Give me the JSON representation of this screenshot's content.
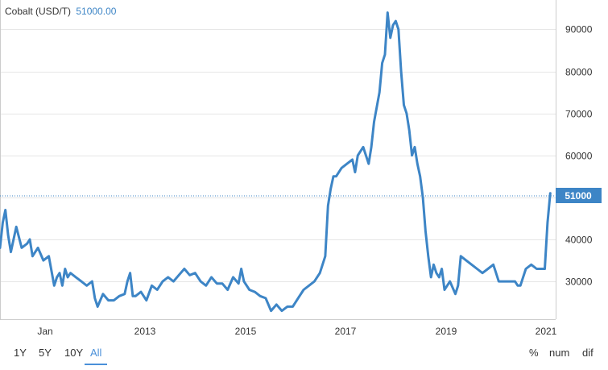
{
  "header": {
    "instrument": "Cobalt (USD/T)",
    "last_price": "51000.00"
  },
  "last_price_tag": "51000",
  "range_buttons": [
    {
      "label": "1Y",
      "active": false
    },
    {
      "label": "5Y",
      "active": false
    },
    {
      "label": "10Y",
      "active": false
    },
    {
      "label": "All",
      "active": true
    }
  ],
  "mode_buttons": [
    {
      "label": "%"
    },
    {
      "label": "num"
    },
    {
      "label": "dif"
    }
  ],
  "colors": {
    "line": "#3d85c6",
    "accent": "#4a90d9",
    "grid": "#e6e6e6",
    "tag": "#3d85c6"
  },
  "chart_data": {
    "type": "line",
    "title": "Cobalt (USD/T)",
    "xlabel": "",
    "ylabel": "",
    "x_ticks": [
      "Jan",
      "2013",
      "2015",
      "2017",
      "2019",
      "2021"
    ],
    "y_ticks": [
      30000,
      40000,
      50000,
      60000,
      70000,
      80000,
      90000
    ],
    "ylim": [
      21000,
      97000
    ],
    "xlim": [
      2011.0,
      2021.25
    ],
    "grid": "horizontal",
    "legend": "none",
    "last_value": 51000,
    "series": [
      {
        "x": [
          2011.0,
          2011.05,
          2011.1,
          2011.15,
          2011.2,
          2011.3,
          2011.4,
          2011.5,
          2011.55,
          2011.6,
          2011.7,
          2011.8,
          2011.9,
          2012.0,
          2012.05,
          2012.1,
          2012.15,
          2012.2,
          2012.25,
          2012.3,
          2012.4,
          2012.5,
          2012.6,
          2012.7,
          2012.75,
          2012.8,
          2012.9,
          2013.0,
          2013.1,
          2013.2,
          2013.3,
          2013.35,
          2013.4,
          2013.45,
          2013.5,
          2013.6,
          2013.7,
          2013.8,
          2013.9,
          2014.0,
          2014.1,
          2014.2,
          2014.3,
          2014.4,
          2014.5,
          2014.6,
          2014.7,
          2014.8,
          2014.9,
          2015.0,
          2015.1,
          2015.2,
          2015.3,
          2015.4,
          2015.45,
          2015.5,
          2015.6,
          2015.7,
          2015.8,
          2015.9,
          2016.0,
          2016.1,
          2016.2,
          2016.3,
          2016.4,
          2016.5,
          2016.6,
          2016.7,
          2016.8,
          2016.9,
          2017.0,
          2017.05,
          2017.1,
          2017.15,
          2017.2,
          2017.3,
          2017.4,
          2017.5,
          2017.55,
          2017.6,
          2017.7,
          2017.8,
          2017.85,
          2017.9,
          2018.0,
          2018.05,
          2018.1,
          2018.15,
          2018.2,
          2018.25,
          2018.3,
          2018.35,
          2018.4,
          2018.45,
          2018.5,
          2018.55,
          2018.6,
          2018.65,
          2018.7,
          2018.75,
          2018.8,
          2018.85,
          2018.9,
          2018.95,
          2019.0,
          2019.05,
          2019.1,
          2019.15,
          2019.2,
          2019.3,
          2019.4,
          2019.45,
          2019.5,
          2019.6,
          2019.7,
          2019.8,
          2019.9,
          2020.0,
          2020.1,
          2020.15,
          2020.2,
          2020.3,
          2020.4,
          2020.5,
          2020.55,
          2020.6,
          2020.7,
          2020.8,
          2020.9,
          2021.0,
          2021.05,
          2021.1,
          2021.15
        ],
        "y": [
          38000,
          44000,
          47000,
          41000,
          37000,
          43000,
          38000,
          39000,
          40000,
          36000,
          38000,
          35000,
          36000,
          29000,
          31000,
          32000,
          29000,
          33000,
          31000,
          32000,
          31000,
          30000,
          29000,
          30000,
          26000,
          24000,
          27000,
          25500,
          25500,
          26500,
          27000,
          30000,
          32000,
          26500,
          26500,
          27500,
          25500,
          29000,
          28000,
          30000,
          31000,
          30000,
          31500,
          33000,
          31500,
          32000,
          30000,
          29000,
          31000,
          29500,
          29500,
          28000,
          31000,
          29500,
          33000,
          30000,
          28000,
          27500,
          26500,
          26000,
          23000,
          24500,
          23000,
          24000,
          24000,
          26000,
          28000,
          29000,
          30000,
          32000,
          36000,
          48000,
          52000,
          55000,
          55000,
          57000,
          58000,
          59000,
          56000,
          60000,
          62000,
          58000,
          62000,
          68000,
          75000,
          82000,
          84000,
          94000,
          88000,
          91000,
          92000,
          90000,
          80000,
          72000,
          70000,
          66000,
          60000,
          62000,
          58000,
          55000,
          50000,
          42000,
          36000,
          31000,
          34000,
          32000,
          31000,
          33000,
          28000,
          30000,
          27000,
          29000,
          36000,
          35000,
          34000,
          33000,
          32000,
          33000,
          34000,
          32000,
          30000,
          30000,
          30000,
          30000,
          29000,
          29000,
          33000,
          34000,
          33000,
          33000,
          33000,
          44000,
          51000
        ]
      }
    ]
  }
}
